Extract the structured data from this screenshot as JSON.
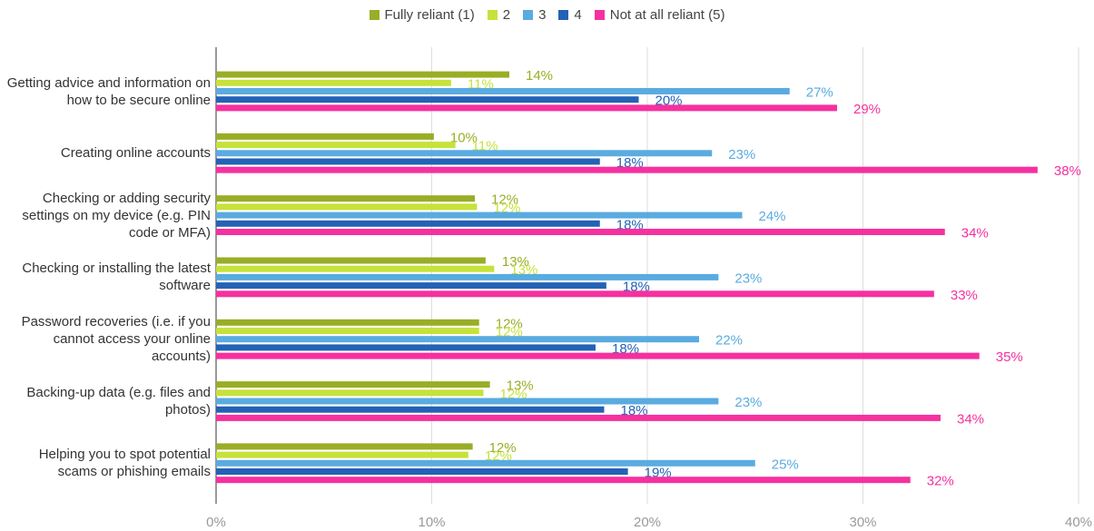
{
  "chart_data": {
    "type": "barh",
    "categories": [
      "Getting advice and information on how to be secure online",
      "Creating online accounts",
      "Checking or adding security settings on my device (e.g. PIN code or MFA)",
      "Checking or installing the latest software",
      "Password recoveries (i.e. if you cannot access your online accounts)",
      "Backing-up data (e.g. files and photos)",
      "Helping you to spot potential scams or phishing emails"
    ],
    "series": [
      {
        "name": "Fully reliant (1)",
        "color": "#9aad27",
        "values": [
          13.6,
          10.1,
          12.0,
          12.5,
          12.2,
          12.7,
          11.9
        ],
        "value_labels": [
          "14%",
          "10%",
          "12%",
          "13%",
          "12%",
          "13%",
          "12%"
        ]
      },
      {
        "name": "2",
        "color": "#c6e23a",
        "values": [
          10.9,
          11.1,
          12.1,
          12.9,
          12.2,
          12.4,
          11.7
        ],
        "value_labels": [
          "11%",
          "11%",
          "12%",
          "13%",
          "12%",
          "12%",
          "12%"
        ]
      },
      {
        "name": "3",
        "color": "#5aabe0",
        "values": [
          26.6,
          23.0,
          24.4,
          23.3,
          22.4,
          23.3,
          25.0
        ],
        "value_labels": [
          "27%",
          "23%",
          "24%",
          "23%",
          "22%",
          "23%",
          "25%"
        ]
      },
      {
        "name": "4",
        "color": "#2462b5",
        "values": [
          19.6,
          17.8,
          17.8,
          18.1,
          17.6,
          18.0,
          19.1
        ],
        "value_labels": [
          "20%",
          "18%",
          "18%",
          "18%",
          "18%",
          "18%",
          "19%"
        ]
      },
      {
        "name": "Not at all reliant (5)",
        "color": "#f5319f",
        "values": [
          28.8,
          38.1,
          33.8,
          33.3,
          35.4,
          33.6,
          32.2
        ],
        "value_labels": [
          "29%",
          "38%",
          "34%",
          "33%",
          "35%",
          "34%",
          "32%"
        ]
      }
    ],
    "xlim": [
      0,
      40
    ],
    "xticks": [
      {
        "value": 0,
        "label": "0%"
      },
      {
        "value": 10,
        "label": "10%"
      },
      {
        "value": 20,
        "label": "20%"
      },
      {
        "value": 30,
        "label": "30%"
      },
      {
        "value": 40,
        "label": "40%"
      }
    ],
    "grid": true,
    "legend": "top"
  }
}
